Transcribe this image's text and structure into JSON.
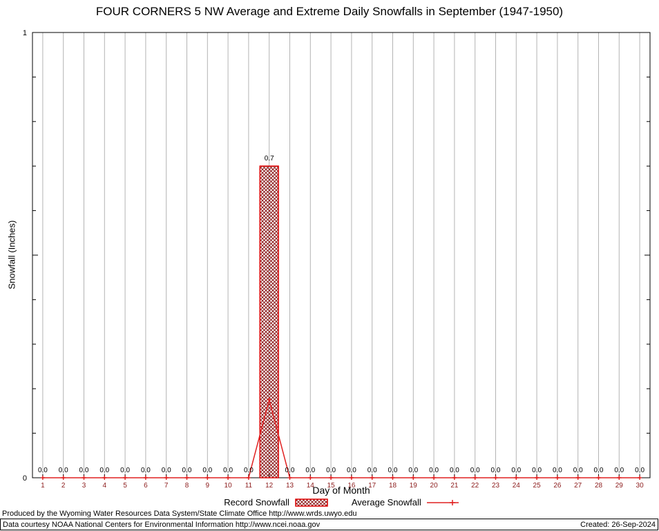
{
  "chart_data": {
    "type": "bar",
    "title": "FOUR CORNERS 5 NW Average and Extreme Daily Snowfalls in September (1947-1950)",
    "xlabel": "Day of Month",
    "ylabel": "Snowfall (Inches)",
    "ylim": [
      0,
      1
    ],
    "yticks": [
      {
        "value": 0,
        "label": "0"
      },
      {
        "value": 1,
        "label": "1"
      }
    ],
    "yminor_step": 0.1,
    "grid": "vertical",
    "legend_position": "bottom",
    "categories": [
      1,
      2,
      3,
      4,
      5,
      6,
      7,
      8,
      9,
      10,
      11,
      12,
      13,
      14,
      15,
      16,
      17,
      18,
      19,
      20,
      21,
      22,
      23,
      24,
      25,
      26,
      27,
      28,
      29,
      30
    ],
    "series": [
      {
        "name": "Record Snowfall",
        "type": "bar",
        "values": [
          0,
          0,
          0,
          0,
          0,
          0,
          0,
          0,
          0,
          0,
          0,
          0.7,
          0,
          0,
          0,
          0,
          0,
          0,
          0,
          0,
          0,
          0,
          0,
          0,
          0,
          0,
          0,
          0,
          0,
          0
        ]
      },
      {
        "name": "Average Snowfall",
        "type": "line",
        "values": [
          0,
          0,
          0,
          0,
          0,
          0,
          0,
          0,
          0,
          0,
          0,
          0.175,
          0,
          0,
          0,
          0,
          0,
          0,
          0,
          0,
          0,
          0,
          0,
          0,
          0,
          0,
          0,
          0,
          0,
          0
        ]
      }
    ]
  },
  "legend": {
    "record": "Record Snowfall",
    "average": "Average Snowfall"
  },
  "footer": {
    "produced": "Produced by the Wyoming Water Resources Data System/State Climate Office http://www.wrds.uwyo.edu",
    "data_courtesy": "Data courtesy NOAA National Centers for Environmental Information http://www.ncei.noaa.gov",
    "created": "Created: 26-Sep-2024"
  },
  "colors": {
    "grid": "#b3b3b3",
    "axis": "#000000",
    "text": "#000000",
    "tick_label": "#8b1a1a",
    "bar_hatch": "#8b1a1a",
    "bar_border": "#dd0000",
    "line": "#e02020"
  }
}
